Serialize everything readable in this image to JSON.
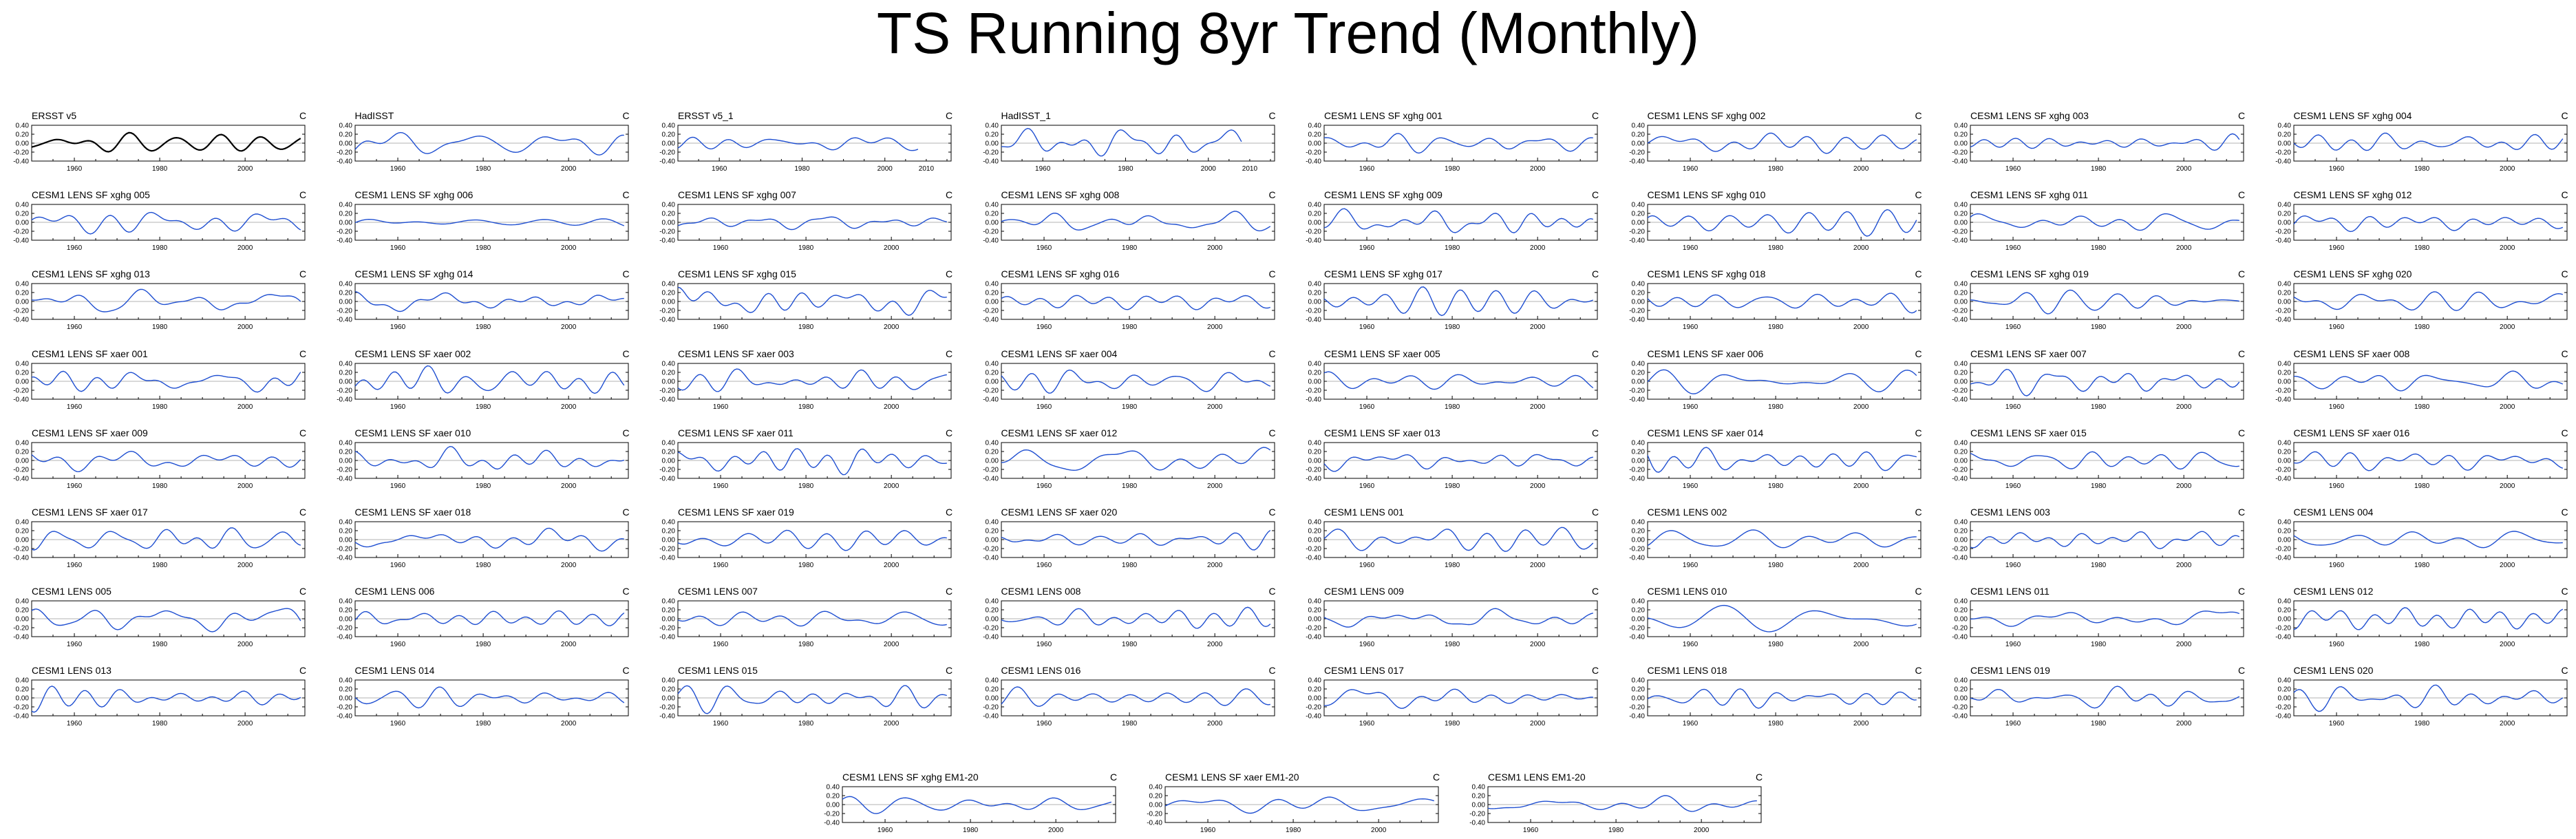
{
  "title": "TS Running 8yr Trend (Monthly)",
  "unit_label": "C",
  "colors": {
    "obs": "#000000",
    "model": "#1f4fd1",
    "axis": "#000000",
    "zero_line": "#9a9a9a"
  },
  "chart_data": {
    "type": "line",
    "panel_type": "line",
    "ylim": [
      -0.4,
      0.4
    ],
    "yticks": [
      -0.4,
      -0.2,
      0.0,
      0.2,
      0.4
    ],
    "ytick_labels": [
      "-0.40",
      "-0.20",
      "0.00",
      "0.20",
      "0.40"
    ],
    "xlim": [
      1950,
      2014
    ],
    "xticks": [
      1960,
      1980,
      2000
    ],
    "xtick_labels": [
      "1960",
      "1980",
      "2000"
    ],
    "xlim_obs_wide": [
      1950,
      2016
    ],
    "xticks_obs_wide": [
      1960,
      1980,
      2000,
      2010
    ],
    "xtick_labels_obs_wide": [
      "1960",
      "1980",
      "2000",
      "2010"
    ],
    "zero_line": true,
    "grid": false,
    "note": "",
    "panels": [
      {
        "title": "ERSST v5",
        "obs": true,
        "seed": 11
      },
      {
        "title": "HadISST",
        "obs": false,
        "seed": 12
      },
      {
        "title": "ERSST v5_1",
        "obs": false,
        "seed": 13,
        "wide": true
      },
      {
        "title": "HadISST_1",
        "obs": false,
        "seed": 14,
        "wide": true
      },
      {
        "title": "CESM1 LENS SF xghg 001",
        "obs": false,
        "seed": 21
      },
      {
        "title": "CESM1 LENS SF xghg 002",
        "obs": false,
        "seed": 22
      },
      {
        "title": "CESM1 LENS SF xghg 003",
        "obs": false,
        "seed": 23
      },
      {
        "title": "CESM1 LENS SF xghg 004",
        "obs": false,
        "seed": 24
      },
      {
        "title": "CESM1 LENS SF xghg 005",
        "obs": false,
        "seed": 25
      },
      {
        "title": "CESM1 LENS SF xghg 006",
        "obs": false,
        "seed": 26
      },
      {
        "title": "CESM1 LENS SF xghg 007",
        "obs": false,
        "seed": 27
      },
      {
        "title": "CESM1 LENS SF xghg 008",
        "obs": false,
        "seed": 28
      },
      {
        "title": "CESM1 LENS SF xghg 009",
        "obs": false,
        "seed": 29
      },
      {
        "title": "CESM1 LENS SF xghg 010",
        "obs": false,
        "seed": 30
      },
      {
        "title": "CESM1 LENS SF xghg 011",
        "obs": false,
        "seed": 31
      },
      {
        "title": "CESM1 LENS SF xghg 012",
        "obs": false,
        "seed": 32
      },
      {
        "title": "CESM1 LENS SF xghg 013",
        "obs": false,
        "seed": 33
      },
      {
        "title": "CESM1 LENS SF xghg 014",
        "obs": false,
        "seed": 34
      },
      {
        "title": "CESM1 LENS SF xghg 015",
        "obs": false,
        "seed": 35
      },
      {
        "title": "CESM1 LENS SF xghg 016",
        "obs": false,
        "seed": 36
      },
      {
        "title": "CESM1 LENS SF xghg 017",
        "obs": false,
        "seed": 37
      },
      {
        "title": "CESM1 LENS SF xghg 018",
        "obs": false,
        "seed": 38
      },
      {
        "title": "CESM1 LENS SF xghg 019",
        "obs": false,
        "seed": 39
      },
      {
        "title": "CESM1 LENS SF xghg 020",
        "obs": false,
        "seed": 40
      },
      {
        "title": "CESM1 LENS SF xaer 001",
        "obs": false,
        "seed": 41
      },
      {
        "title": "CESM1 LENS SF xaer 002",
        "obs": false,
        "seed": 42
      },
      {
        "title": "CESM1 LENS SF xaer 003",
        "obs": false,
        "seed": 43
      },
      {
        "title": "CESM1 LENS SF xaer 004",
        "obs": false,
        "seed": 44
      },
      {
        "title": "CESM1 LENS SF xaer 005",
        "obs": false,
        "seed": 45
      },
      {
        "title": "CESM1 LENS SF xaer 006",
        "obs": false,
        "seed": 46
      },
      {
        "title": "CESM1 LENS SF xaer 007",
        "obs": false,
        "seed": 47
      },
      {
        "title": "CESM1 LENS SF xaer 008",
        "obs": false,
        "seed": 48
      },
      {
        "title": "CESM1 LENS SF xaer 009",
        "obs": false,
        "seed": 49
      },
      {
        "title": "CESM1 LENS SF xaer 010",
        "obs": false,
        "seed": 50
      },
      {
        "title": "CESM1 LENS SF xaer 011",
        "obs": false,
        "seed": 51
      },
      {
        "title": "CESM1 LENS SF xaer 012",
        "obs": false,
        "seed": 52
      },
      {
        "title": "CESM1 LENS SF xaer 013",
        "obs": false,
        "seed": 53
      },
      {
        "title": "CESM1 LENS SF xaer 014",
        "obs": false,
        "seed": 54
      },
      {
        "title": "CESM1 LENS SF xaer 015",
        "obs": false,
        "seed": 55
      },
      {
        "title": "CESM1 LENS SF xaer 016",
        "obs": false,
        "seed": 56
      },
      {
        "title": "CESM1 LENS SF xaer 017",
        "obs": false,
        "seed": 57
      },
      {
        "title": "CESM1 LENS SF xaer 018",
        "obs": false,
        "seed": 58
      },
      {
        "title": "CESM1 LENS SF xaer 019",
        "obs": false,
        "seed": 59
      },
      {
        "title": "CESM1 LENS SF xaer 020",
        "obs": false,
        "seed": 60
      },
      {
        "title": "CESM1 LENS 001",
        "obs": false,
        "seed": 61
      },
      {
        "title": "CESM1 LENS 002",
        "obs": false,
        "seed": 62
      },
      {
        "title": "CESM1 LENS 003",
        "obs": false,
        "seed": 63
      },
      {
        "title": "CESM1 LENS 004",
        "obs": false,
        "seed": 64
      },
      {
        "title": "CESM1 LENS 005",
        "obs": false,
        "seed": 65
      },
      {
        "title": "CESM1 LENS 006",
        "obs": false,
        "seed": 66
      },
      {
        "title": "CESM1 LENS 007",
        "obs": false,
        "seed": 67
      },
      {
        "title": "CESM1 LENS 008",
        "obs": false,
        "seed": 68
      },
      {
        "title": "CESM1 LENS 009",
        "obs": false,
        "seed": 69
      },
      {
        "title": "CESM1 LENS 010",
        "obs": false,
        "seed": 70
      },
      {
        "title": "CESM1 LENS 011",
        "obs": false,
        "seed": 71
      },
      {
        "title": "CESM1 LENS 012",
        "obs": false,
        "seed": 72
      },
      {
        "title": "CESM1 LENS 013",
        "obs": false,
        "seed": 73
      },
      {
        "title": "CESM1 LENS 014",
        "obs": false,
        "seed": 74
      },
      {
        "title": "CESM1 LENS 015",
        "obs": false,
        "seed": 75
      },
      {
        "title": "CESM1 LENS 016",
        "obs": false,
        "seed": 76
      },
      {
        "title": "CESM1 LENS 017",
        "obs": false,
        "seed": 77
      },
      {
        "title": "CESM1 LENS 018",
        "obs": false,
        "seed": 78
      },
      {
        "title": "CESM1 LENS 019",
        "obs": false,
        "seed": 79
      },
      {
        "title": "CESM1 LENS 020",
        "obs": false,
        "seed": 80
      },
      {
        "title": "CESM1 LENS SF xghg EM1-20",
        "obs": false,
        "seed": 81
      },
      {
        "title": "CESM1 LENS SF xaer EM1-20",
        "obs": false,
        "seed": 82
      },
      {
        "title": "CESM1 LENS EM1-20",
        "obs": false,
        "seed": 83
      }
    ]
  }
}
